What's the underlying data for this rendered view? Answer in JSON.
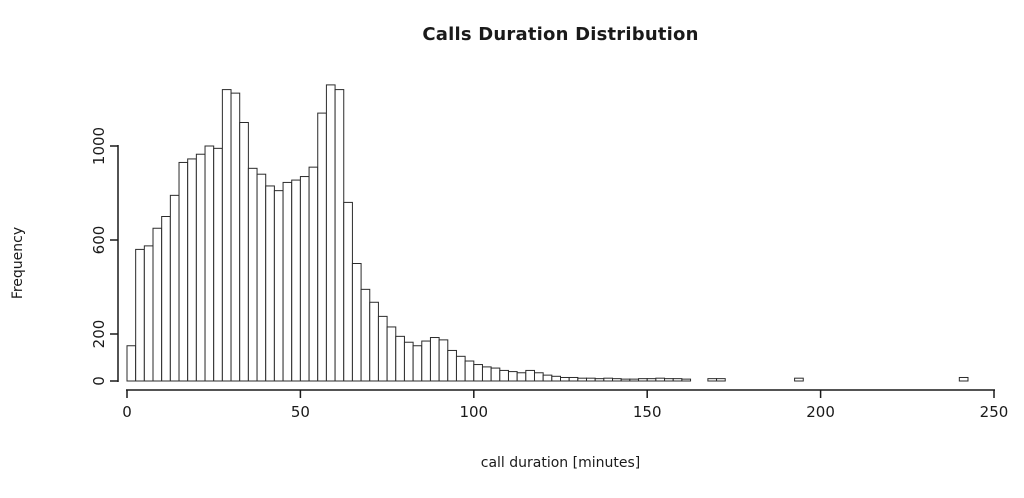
{
  "figure": {
    "title": "Calls Duration Distribution",
    "x_axis_title": "call duration [minutes]",
    "y_axis_title": "Frequency"
  },
  "chart_data": {
    "type": "bar",
    "subtype": "histogram",
    "title": "Calls Duration Distribution",
    "xlabel": "call duration [minutes]",
    "ylabel": "Frequency",
    "xlim": [
      0,
      250
    ],
    "ylim": [
      0,
      1300
    ],
    "grid": false,
    "legend": "none",
    "bin_width": 2.5,
    "bin_start": 0,
    "bar_fill": "#ffffff",
    "bar_stroke": "#2b2b2b",
    "axis_color": "#1a1a1a",
    "counts": [
      150,
      560,
      575,
      650,
      700,
      790,
      930,
      945,
      965,
      1000,
      990,
      1240,
      1225,
      1100,
      905,
      880,
      830,
      810,
      845,
      855,
      870,
      910,
      1140,
      1260,
      1240,
      760,
      500,
      390,
      335,
      275,
      230,
      190,
      165,
      150,
      170,
      185,
      175,
      130,
      105,
      85,
      70,
      60,
      55,
      45,
      40,
      35,
      45,
      35,
      25,
      20,
      15,
      15,
      12,
      12,
      10,
      12,
      10,
      8,
      8,
      10,
      10,
      12,
      10,
      10,
      8,
      0,
      0,
      10,
      10,
      0,
      0,
      0,
      0,
      0,
      0,
      0,
      0,
      12,
      0,
      0,
      0,
      0,
      0,
      0,
      0,
      0,
      0,
      0,
      0,
      0,
      0,
      0,
      0,
      0,
      0,
      0,
      15,
      0,
      0,
      0
    ],
    "x_ticks": {
      "values": [
        0,
        50,
        100,
        150,
        200,
        250
      ],
      "labels": [
        "0",
        "50",
        "100",
        "150",
        "200",
        "250"
      ]
    },
    "y_ticks": {
      "values": [
        0,
        200,
        600,
        1000
      ],
      "labels": [
        "0",
        "200",
        "600",
        "1000"
      ]
    }
  }
}
